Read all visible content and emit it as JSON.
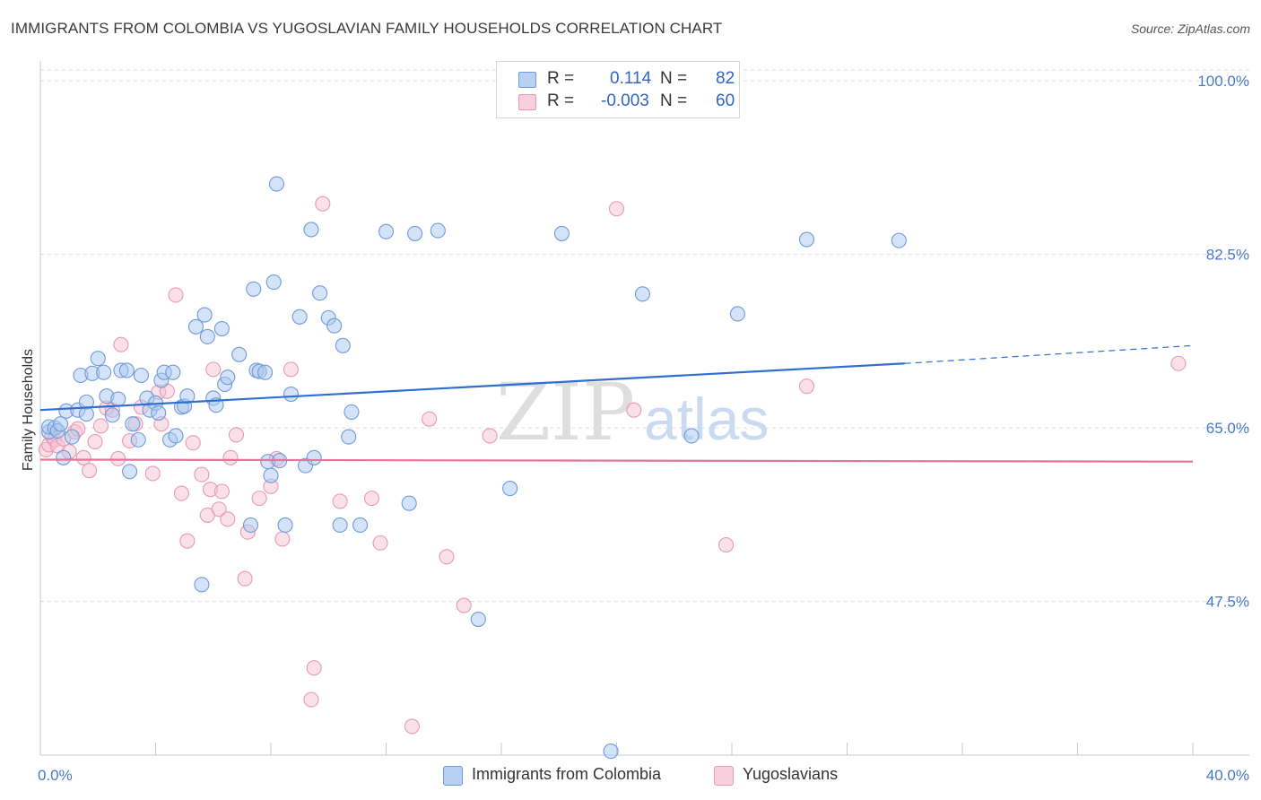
{
  "title": "IMMIGRANTS FROM COLOMBIA VS YUGOSLAVIAN FAMILY HOUSEHOLDS CORRELATION CHART",
  "source": "Source: ZipAtlas.com",
  "watermark": {
    "zip": "ZIP",
    "atlas": "atlas"
  },
  "legend": {
    "rows": [
      {
        "r_label": "R =",
        "r_value": "0.114",
        "n_label": "N =",
        "n_value": "82"
      },
      {
        "r_label": "R =",
        "r_value": "-0.003",
        "n_label": "N =",
        "n_value": "60"
      }
    ]
  },
  "bottom_legend": [
    "Immigrants from Colombia",
    "Yugoslavians"
  ],
  "colors": {
    "blue_fill": "#a9c7f0",
    "blue_stroke": "#6f9bd8",
    "blue_line": "#2f6fd0",
    "pink_fill": "#f6c1d3",
    "pink_stroke": "#e79ab6",
    "pink_line": "#e4739c",
    "tick_text": "#4a78c8",
    "grid": "#dddddd"
  },
  "chart_data": {
    "type": "scatter",
    "title": "IMMIGRANTS FROM COLOMBIA VS YUGOSLAVIAN FAMILY HOUSEHOLDS CORRELATION CHART",
    "xlabel": "",
    "ylabel": "Family Households",
    "xlim": [
      0,
      40
    ],
    "ylim": [
      32,
      102
    ],
    "x_tick_labels": [
      "0.0%",
      "40.0%"
    ],
    "y_ticks": [
      47.5,
      65.0,
      82.5,
      100.0
    ],
    "y_tick_labels": [
      "47.5%",
      "65.0%",
      "82.5%",
      "100.0%"
    ],
    "grid": true,
    "legend_position": "top-center",
    "series": [
      {
        "name": "Immigrants from Colombia",
        "r": 0.114,
        "n": 82,
        "trend": {
          "x": [
            0,
            30
          ],
          "y": [
            66.8,
            71.5
          ],
          "dashed_to": [
            40,
            73.3
          ]
        },
        "points": [
          [
            0.3,
            64.6
          ],
          [
            0.3,
            65.1
          ],
          [
            0.5,
            65.0
          ],
          [
            0.6,
            64.7
          ],
          [
            0.7,
            65.4
          ],
          [
            0.8,
            62.0
          ],
          [
            0.9,
            66.7
          ],
          [
            1.1,
            64.1
          ],
          [
            1.3,
            66.8
          ],
          [
            1.4,
            70.3
          ],
          [
            1.6,
            67.6
          ],
          [
            1.6,
            66.4
          ],
          [
            1.8,
            70.5
          ],
          [
            2.0,
            72.0
          ],
          [
            2.2,
            70.6
          ],
          [
            2.3,
            68.2
          ],
          [
            2.5,
            66.3
          ],
          [
            2.7,
            67.9
          ],
          [
            2.8,
            70.8
          ],
          [
            3.0,
            70.8
          ],
          [
            3.1,
            60.6
          ],
          [
            3.2,
            65.4
          ],
          [
            3.4,
            63.8
          ],
          [
            3.5,
            70.3
          ],
          [
            3.7,
            68.0
          ],
          [
            3.8,
            66.8
          ],
          [
            4.0,
            67.5
          ],
          [
            4.1,
            66.5
          ],
          [
            4.2,
            69.8
          ],
          [
            4.3,
            70.6
          ],
          [
            4.5,
            63.8
          ],
          [
            4.6,
            70.6
          ],
          [
            4.7,
            64.2
          ],
          [
            4.9,
            67.1
          ],
          [
            5.0,
            67.2
          ],
          [
            5.1,
            68.2
          ],
          [
            5.4,
            75.2
          ],
          [
            5.6,
            49.2
          ],
          [
            5.7,
            76.4
          ],
          [
            5.8,
            74.2
          ],
          [
            6.0,
            68.0
          ],
          [
            6.1,
            67.3
          ],
          [
            6.3,
            75.0
          ],
          [
            6.4,
            69.4
          ],
          [
            6.5,
            70.1
          ],
          [
            6.9,
            72.4
          ],
          [
            7.3,
            55.2
          ],
          [
            7.4,
            79.0
          ],
          [
            7.5,
            70.8
          ],
          [
            7.6,
            70.7
          ],
          [
            7.8,
            70.6
          ],
          [
            7.9,
            61.6
          ],
          [
            8.0,
            60.2
          ],
          [
            8.1,
            79.7
          ],
          [
            8.2,
            89.6
          ],
          [
            8.3,
            61.7
          ],
          [
            8.5,
            55.2
          ],
          [
            8.7,
            68.4
          ],
          [
            9.0,
            76.2
          ],
          [
            9.2,
            61.2
          ],
          [
            9.4,
            85.0
          ],
          [
            9.5,
            62.0
          ],
          [
            9.7,
            78.6
          ],
          [
            10.0,
            76.1
          ],
          [
            10.2,
            75.3
          ],
          [
            10.4,
            55.2
          ],
          [
            10.5,
            73.3
          ],
          [
            10.7,
            64.1
          ],
          [
            10.8,
            66.6
          ],
          [
            11.1,
            55.2
          ],
          [
            12.0,
            84.8
          ],
          [
            12.8,
            57.4
          ],
          [
            13.0,
            84.6
          ],
          [
            13.8,
            84.9
          ],
          [
            15.2,
            45.7
          ],
          [
            16.3,
            58.9
          ],
          [
            18.1,
            84.6
          ],
          [
            19.8,
            32.4
          ],
          [
            20.9,
            78.5
          ],
          [
            22.6,
            64.2
          ],
          [
            24.2,
            76.5
          ],
          [
            26.6,
            84.0
          ],
          [
            29.8,
            83.9
          ]
        ]
      },
      {
        "name": "Yugoslavians",
        "r": -0.003,
        "n": 60,
        "trend": {
          "x": [
            0,
            40
          ],
          "y": [
            61.8,
            61.6
          ]
        },
        "points": [
          [
            0.2,
            62.8
          ],
          [
            0.3,
            63.3
          ],
          [
            0.4,
            64.2
          ],
          [
            0.5,
            63.8
          ],
          [
            0.6,
            63.2
          ],
          [
            0.8,
            63.9
          ],
          [
            1.0,
            62.6
          ],
          [
            1.2,
            64.6
          ],
          [
            1.3,
            64.9
          ],
          [
            1.5,
            62.0
          ],
          [
            1.7,
            60.7
          ],
          [
            1.9,
            63.6
          ],
          [
            2.1,
            65.2
          ],
          [
            2.3,
            67.0
          ],
          [
            2.5,
            66.8
          ],
          [
            2.7,
            61.9
          ],
          [
            2.8,
            73.4
          ],
          [
            3.1,
            63.7
          ],
          [
            3.3,
            65.4
          ],
          [
            3.5,
            67.1
          ],
          [
            3.9,
            60.4
          ],
          [
            4.1,
            68.6
          ],
          [
            4.2,
            65.4
          ],
          [
            4.4,
            68.7
          ],
          [
            4.7,
            78.4
          ],
          [
            4.9,
            58.4
          ],
          [
            5.1,
            53.6
          ],
          [
            5.3,
            63.5
          ],
          [
            5.6,
            60.3
          ],
          [
            5.8,
            56.2
          ],
          [
            5.9,
            58.8
          ],
          [
            6.0,
            70.9
          ],
          [
            6.2,
            56.8
          ],
          [
            6.3,
            58.6
          ],
          [
            6.5,
            55.8
          ],
          [
            6.6,
            62.0
          ],
          [
            6.8,
            64.3
          ],
          [
            7.1,
            49.8
          ],
          [
            7.2,
            54.5
          ],
          [
            7.6,
            57.9
          ],
          [
            8.0,
            59.1
          ],
          [
            8.2,
            61.9
          ],
          [
            8.4,
            53.8
          ],
          [
            8.7,
            70.9
          ],
          [
            9.4,
            37.6
          ],
          [
            9.5,
            40.8
          ],
          [
            9.8,
            87.6
          ],
          [
            10.4,
            57.6
          ],
          [
            11.5,
            57.9
          ],
          [
            11.8,
            53.4
          ],
          [
            12.9,
            34.9
          ],
          [
            13.5,
            65.9
          ],
          [
            14.1,
            52.0
          ],
          [
            14.7,
            47.1
          ],
          [
            15.6,
            64.2
          ],
          [
            20.0,
            87.1
          ],
          [
            20.6,
            66.8
          ],
          [
            23.8,
            53.2
          ],
          [
            26.6,
            69.2
          ],
          [
            39.5,
            71.5
          ]
        ]
      }
    ]
  }
}
